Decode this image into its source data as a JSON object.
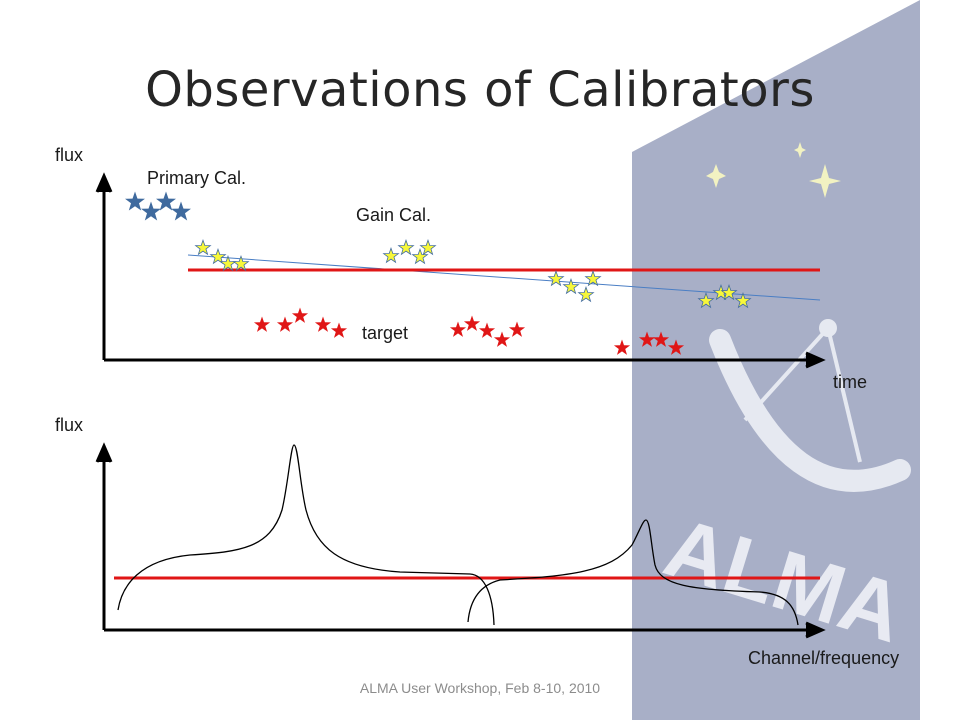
{
  "slide": {
    "title": "Observations of Calibrators",
    "footer": "ALMA User Workshop, Feb 8-10, 2010",
    "logo_text": "ALMA"
  },
  "top_plot": {
    "y_label": "flux",
    "x_label": "time",
    "primary_cal_label": "Primary Cal.",
    "gain_cal_label": "Gain Cal.",
    "target_label": "target"
  },
  "bottom_plot": {
    "y_label": "flux",
    "x_label": "Channel/frequency"
  },
  "colors": {
    "primary_star": "#3f6a9e",
    "gain_star_fill": "#f7f73a",
    "gain_star_stroke": "#3f6a9e",
    "target_star": "#e01616",
    "reference_line": "#e01616",
    "trend_line": "#4a7ec4",
    "axis": "#000000",
    "logo_panel": "#a8afc7"
  },
  "icons": {
    "primary": "primary-calibrator-star-icon",
    "gain": "gain-calibrator-star-icon",
    "target": "target-star-icon"
  }
}
